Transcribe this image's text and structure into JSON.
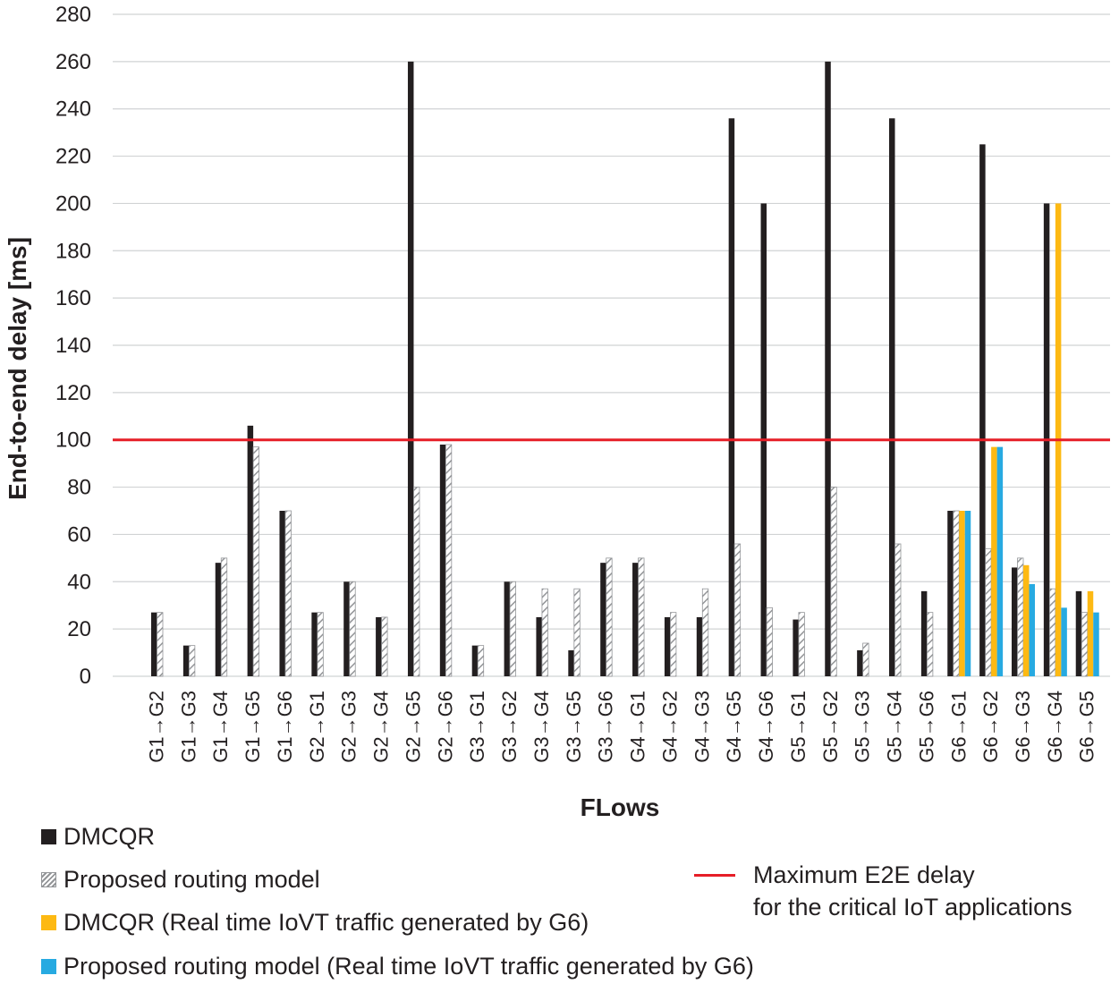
{
  "chart_data": {
    "type": "bar",
    "title": "",
    "xlabel": "FLows",
    "ylabel": "End-to-end delay [ms]",
    "ylim": [
      0,
      280
    ],
    "yticks": [
      0,
      20,
      40,
      60,
      80,
      100,
      120,
      140,
      160,
      180,
      200,
      220,
      240,
      260,
      280
    ],
    "grid": true,
    "categories": [
      "G1→G2",
      "G1→G3",
      "G1→G4",
      "G1→G5",
      "G1→G6",
      "G2→G1",
      "G2→G3",
      "G2→G4",
      "G2→G5",
      "G2→G6",
      "G3→G1",
      "G3→G2",
      "G3→G4",
      "G3→G5",
      "G3→G6",
      "G4→G1",
      "G4→G2",
      "G4→G3",
      "G4→G5",
      "G4→G6",
      "G5→G1",
      "G5→G2",
      "G5→G3",
      "G5→G4",
      "G5→G6",
      "G6→G1",
      "G6→G2",
      "G6→G3",
      "G6→G4",
      "G6→G5"
    ],
    "series": [
      {
        "name": "DMCQR",
        "color": "#231f20",
        "pattern": "solid",
        "values": [
          27,
          13,
          48,
          106,
          70,
          27,
          40,
          25,
          260,
          98,
          13,
          40,
          25,
          11,
          48,
          48,
          25,
          25,
          236,
          200,
          24,
          260,
          11,
          236,
          36,
          70,
          225,
          46,
          200,
          36
        ]
      },
      {
        "name": "Proposed routing model",
        "color": "#939598",
        "pattern": "hatch",
        "values": [
          27,
          13,
          50,
          97,
          70,
          27,
          40,
          25,
          80,
          98,
          13,
          40,
          37,
          37,
          50,
          50,
          27,
          37,
          56,
          29,
          27,
          80,
          14,
          56,
          27,
          70,
          54,
          50,
          37,
          27
        ]
      },
      {
        "name": "DMCQR (Real time IoVT traffic generated by G6)",
        "color": "#fdb913",
        "pattern": "solid",
        "values": [
          null,
          null,
          null,
          null,
          null,
          null,
          null,
          null,
          null,
          null,
          null,
          null,
          null,
          null,
          null,
          null,
          null,
          null,
          null,
          null,
          null,
          null,
          null,
          null,
          null,
          70,
          97,
          47,
          200,
          36
        ]
      },
      {
        "name": "Proposed routing model (Real time IoVT traffic generated by G6)",
        "color": "#27aae1",
        "pattern": "solid",
        "values": [
          null,
          null,
          null,
          null,
          null,
          null,
          null,
          null,
          null,
          null,
          null,
          null,
          null,
          null,
          null,
          null,
          null,
          null,
          null,
          null,
          null,
          null,
          null,
          null,
          null,
          70,
          97,
          39,
          29,
          27
        ]
      }
    ],
    "reference_line": {
      "value": 100,
      "color": "#e61e27",
      "label_line1": "Maximum E2E delay",
      "label_line2": "for the critical IoT applications"
    }
  }
}
